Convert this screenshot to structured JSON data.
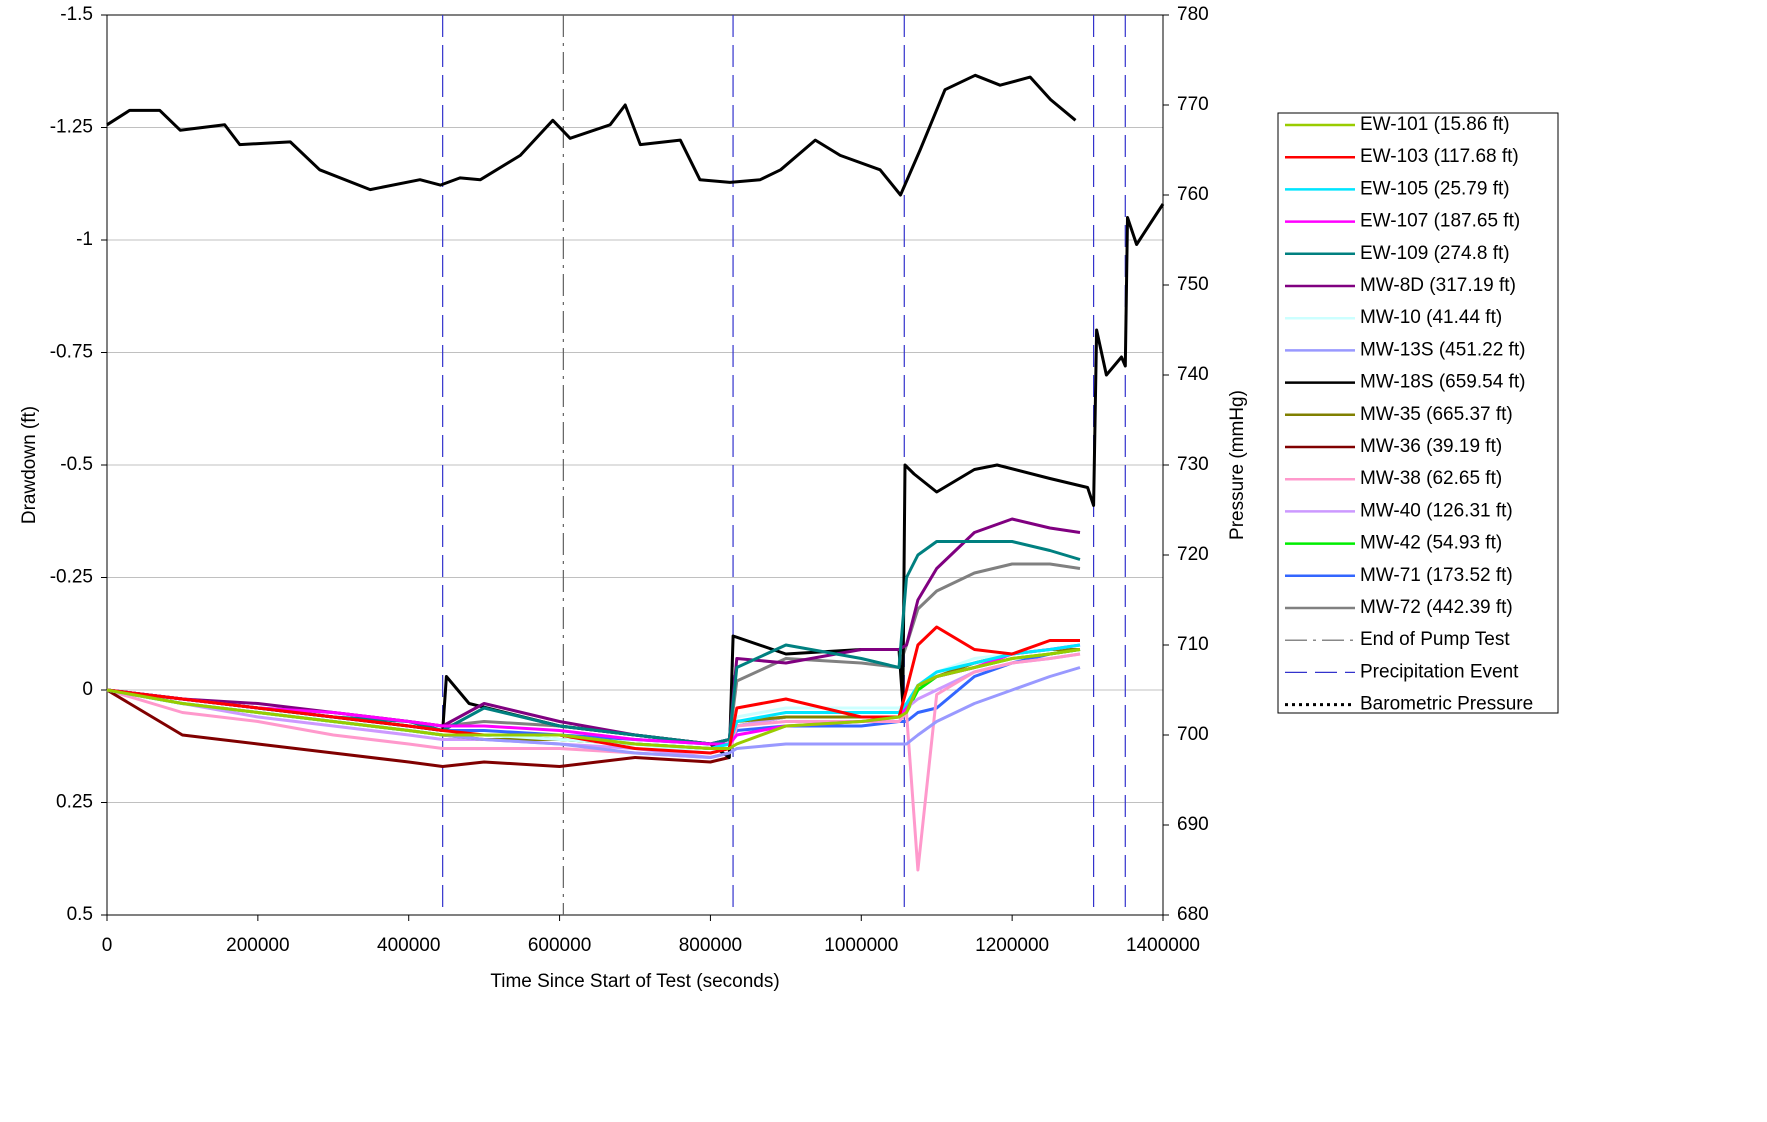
{
  "chart_data": {
    "type": "line",
    "xlabel": "Time Since Start of Test (seconds)",
    "ylabel": "Drawdown (ft)",
    "y2label": "Pressure (mmHg)",
    "xlim": [
      0,
      1400000
    ],
    "xticks": [
      0,
      200000,
      400000,
      600000,
      800000,
      1000000,
      1200000,
      1400000
    ],
    "ylim": [
      -1.5,
      0.5
    ],
    "y_inverted": true,
    "yticks": [
      -1.5,
      -1.25,
      -1,
      -0.75,
      -0.5,
      -0.25,
      0,
      0.25,
      0.5
    ],
    "y2lim": [
      680,
      780
    ],
    "y2ticks": [
      680,
      690,
      700,
      710,
      720,
      730,
      740,
      750,
      760,
      770,
      780
    ],
    "grid": true,
    "legend": "right",
    "x": [
      0,
      100000,
      200000,
      300000,
      400000,
      445000,
      500000,
      600000,
      700000,
      800000,
      825000,
      835000,
      900000,
      1000000,
      1050000,
      1060000,
      1075000,
      1100000,
      1150000,
      1200000,
      1250000,
      1290000
    ],
    "series": [
      {
        "name": "EW-101 (15.86 ft)",
        "color": "#99cc00",
        "values": [
          0,
          0.03,
          0.05,
          0.07,
          0.09,
          0.1,
          0.1,
          0.1,
          0.12,
          0.13,
          0.13,
          0.12,
          0.08,
          0.07,
          0.06,
          0.05,
          -0.01,
          -0.03,
          -0.05,
          -0.07,
          -0.08,
          -0.09
        ]
      },
      {
        "name": "EW-103 (117.68 ft)",
        "color": "#ff0000",
        "values": [
          0,
          0.02,
          0.04,
          0.06,
          0.08,
          0.09,
          0.1,
          0.1,
          0.13,
          0.14,
          0.13,
          0.04,
          0.02,
          0.06,
          0.06,
          0.0,
          -0.1,
          -0.14,
          -0.09,
          -0.08,
          -0.11,
          -0.11
        ]
      },
      {
        "name": "EW-105 (25.79 ft)",
        "color": "#00e5ff",
        "values": [
          0,
          0.03,
          0.05,
          0.07,
          0.09,
          0.1,
          0.1,
          0.1,
          0.12,
          0.13,
          0.12,
          0.07,
          0.05,
          0.05,
          0.05,
          0.03,
          -0.01,
          -0.04,
          -0.06,
          -0.08,
          -0.09,
          -0.1
        ]
      },
      {
        "name": "EW-107 (187.65 ft)",
        "color": "#ff00ff",
        "values": [
          0,
          0.02,
          0.04,
          0.05,
          0.07,
          0.08,
          0.08,
          0.09,
          0.11,
          0.12,
          0.12,
          0.1,
          0.08,
          0.07,
          0.06,
          0.04,
          -0.01,
          -0.03,
          -0.05,
          -0.08,
          -0.09,
          -0.1
        ]
      },
      {
        "name": "EW-109 (274.8 ft)",
        "color": "#008080",
        "values": [
          0,
          0.02,
          0.04,
          0.06,
          0.07,
          0.09,
          0.04,
          0.08,
          0.1,
          0.12,
          0.11,
          -0.05,
          -0.1,
          -0.07,
          -0.05,
          -0.25,
          -0.3,
          -0.33,
          -0.33,
          -0.33,
          -0.31,
          -0.29
        ]
      },
      {
        "name": "MW-8D (317.19 ft)",
        "color": "#800080",
        "values": [
          0,
          0.02,
          0.03,
          0.05,
          0.07,
          0.08,
          0.03,
          0.07,
          0.1,
          0.12,
          0.11,
          -0.07,
          -0.06,
          -0.09,
          -0.09,
          -0.1,
          -0.2,
          -0.27,
          -0.35,
          -0.38,
          -0.36,
          -0.35
        ]
      },
      {
        "name": "MW-10 (41.44 ft)",
        "color": "#ccffff",
        "values": [
          0,
          0.03,
          0.05,
          0.07,
          0.09,
          0.1,
          0.1,
          0.11,
          0.12,
          0.14,
          0.12,
          0.06,
          0.04,
          0.04,
          0.04,
          0.03,
          -0.01,
          -0.04,
          -0.07,
          -0.08,
          -0.09,
          -0.1
        ]
      },
      {
        "name": "MW-13S (451.22 ft)",
        "color": "#9999ff",
        "values": [
          0,
          0.03,
          0.05,
          0.07,
          0.09,
          0.1,
          0.11,
          0.12,
          0.14,
          0.15,
          0.14,
          0.13,
          0.12,
          0.12,
          0.12,
          0.12,
          0.1,
          0.07,
          0.03,
          0.0,
          -0.03,
          -0.05
        ]
      },
      {
        "name": "MW-18S (659.54 ft)",
        "color": "#000000",
        "x": [
          0,
          200000,
          400000,
          445000,
          450000,
          480000,
          600000,
          800000,
          825000,
          830000,
          900000,
          1000000,
          1050000,
          1055000,
          1058000,
          1070000,
          1100000,
          1150000,
          1180000,
          1250000,
          1300000,
          1308000,
          1312000,
          1325000,
          1345000,
          1350000,
          1353000,
          1365000,
          1400000
        ],
        "values": [
          0,
          0.04,
          0.08,
          0.09,
          -0.03,
          0.03,
          0.08,
          0.12,
          0.15,
          -0.12,
          -0.08,
          -0.09,
          -0.09,
          0.03,
          -0.5,
          -0.48,
          -0.44,
          -0.49,
          -0.5,
          -0.47,
          -0.45,
          -0.41,
          -0.8,
          -0.7,
          -0.74,
          -0.72,
          -1.05,
          -0.99,
          -1.08
        ]
      },
      {
        "name": "MW-35 (665.37 ft)",
        "color": "#808000",
        "values": [
          0,
          0.03,
          0.05,
          0.07,
          0.09,
          0.1,
          0.11,
          0.11,
          0.12,
          0.13,
          0.12,
          0.07,
          0.06,
          0.06,
          0.06,
          0.04,
          -0.01,
          -0.03,
          -0.06,
          -0.08,
          -0.09,
          -0.09
        ]
      },
      {
        "name": "MW-36 (39.19 ft)",
        "color": "#800000",
        "values": [
          0,
          0.1,
          0.12,
          0.14,
          0.16,
          0.17,
          0.16,
          0.17,
          0.15,
          0.16,
          0.15,
          null,
          null,
          null,
          null,
          null,
          null,
          null,
          null,
          null,
          null,
          null
        ]
      },
      {
        "name": "MW-38 (62.65 ft)",
        "color": "#ff99cc",
        "values": [
          0,
          0.05,
          0.07,
          0.1,
          0.12,
          0.13,
          0.13,
          0.13,
          0.14,
          0.15,
          0.14,
          0.08,
          0.07,
          0.07,
          0.07,
          0.05,
          0.4,
          0.01,
          -0.04,
          -0.06,
          -0.07,
          -0.08
        ]
      },
      {
        "name": "MW-40 (126.31 ft)",
        "color": "#cc99ff",
        "values": [
          0,
          0.03,
          0.06,
          0.08,
          0.1,
          0.11,
          0.11,
          0.12,
          0.13,
          0.15,
          0.14,
          0.08,
          0.06,
          0.06,
          0.06,
          0.04,
          0.02,
          0.0,
          -0.04,
          -0.06,
          -0.07,
          -0.08
        ]
      },
      {
        "name": "MW-42 (54.93 ft)",
        "color": "#00ee00",
        "values": [
          0,
          0.03,
          0.05,
          0.07,
          0.09,
          0.1,
          0.1,
          0.11,
          0.12,
          0.13,
          0.12,
          0.08,
          0.06,
          0.06,
          0.06,
          0.05,
          0.0,
          -0.03,
          -0.05,
          -0.07,
          -0.08,
          -0.09
        ]
      },
      {
        "name": "MW-71 (173.52 ft)",
        "color": "#3366ff",
        "values": [
          0,
          0.02,
          0.04,
          0.06,
          0.08,
          0.09,
          0.09,
          0.1,
          0.11,
          0.12,
          0.12,
          0.09,
          0.08,
          0.08,
          0.07,
          0.07,
          0.05,
          0.04,
          -0.03,
          -0.06,
          -0.08,
          -0.09
        ]
      },
      {
        "name": "MW-72 (442.39 ft)",
        "color": "#808080",
        "values": [
          0,
          0.02,
          0.04,
          0.05,
          0.07,
          0.08,
          0.07,
          0.08,
          0.1,
          0.12,
          0.11,
          -0.02,
          -0.07,
          -0.06,
          -0.05,
          -0.1,
          -0.18,
          -0.22,
          -0.26,
          -0.28,
          -0.28,
          -0.27
        ]
      }
    ],
    "vlines": [
      {
        "name": "End of Pump Test",
        "color": "#606060",
        "style": "dashdot",
        "x": [
          605000
        ]
      },
      {
        "name": "Precipitation Event",
        "color": "#3333cc",
        "style": "dashed",
        "x": [
          445000,
          830000,
          1057000,
          1308000,
          1350000
        ]
      }
    ],
    "pressure": {
      "name": "Barometric Pressure",
      "color": "#000000",
      "axis": "y2",
      "style": "dotted",
      "x": [
        0,
        30000,
        70000,
        97000,
        156000,
        176000,
        243000,
        282000,
        349000,
        415000,
        442000,
        468000,
        495000,
        548000,
        591000,
        614000,
        667000,
        687000,
        707000,
        760000,
        786000,
        826000,
        866000,
        893000,
        939000,
        972000,
        1025000,
        1052000,
        1078000,
        1111000,
        1151000,
        1184000,
        1224000,
        1251000,
        1284000
      ],
      "values": [
        767.8,
        769.4,
        769.4,
        767.2,
        767.8,
        765.6,
        765.9,
        762.8,
        760.6,
        761.7,
        761.1,
        761.9,
        761.7,
        764.4,
        768.3,
        766.3,
        767.8,
        770.0,
        765.6,
        766.1,
        761.7,
        761.4,
        761.7,
        762.8,
        766.1,
        764.4,
        762.8,
        760.0,
        765.0,
        771.7,
        773.3,
        772.2,
        773.1,
        770.6,
        768.3
      ]
    }
  }
}
